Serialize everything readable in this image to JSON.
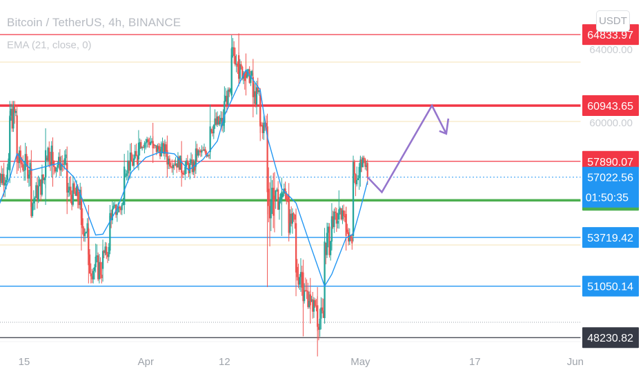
{
  "header": {
    "title": "Bitcoin / TetherUS, 4h, BINANCE",
    "indicator": "EMA (21, close, 0)",
    "currency": "USDT"
  },
  "colors": {
    "up": "#26a69a",
    "down": "#ef5350",
    "ema": "#2196f3",
    "red_level": "#f23645",
    "green_level": "#4caf50",
    "blue_level": "#2196f3",
    "black_level": "#363a45",
    "arrow": "#9575cd",
    "axis_text": "#c9ccd1"
  },
  "chart_data": {
    "type": "candlestick",
    "timeframe": "4h",
    "x_ticks": [
      "15",
      "Apr",
      "12",
      "May",
      "17",
      "Jun"
    ],
    "y_ticks": [
      "64000.00",
      "60000.00"
    ],
    "ylim": [
      46500,
      66200
    ],
    "price_levels": [
      {
        "value": "64833.97",
        "color": "red"
      },
      {
        "value": "60943.65",
        "color": "red"
      },
      {
        "value": "57890.07",
        "color": "red"
      },
      {
        "value": "55753.65",
        "color": "green"
      },
      {
        "value": "53719.42",
        "color": "blue"
      },
      {
        "value": "51050.14",
        "color": "blue"
      },
      {
        "value": "48230.82",
        "color": "black"
      }
    ],
    "current_price": {
      "value": "57022.56",
      "countdown": "01:50:35"
    },
    "ema_period": 21,
    "ema_path": [
      [
        "Mar 11",
        55000
      ],
      [
        "Mar 13",
        57000
      ],
      [
        "Mar 14",
        58300
      ],
      [
        "Mar 16",
        57400
      ],
      [
        "Mar 18",
        57600
      ],
      [
        "Mar 20",
        57800
      ],
      [
        "Mar 22",
        57000
      ],
      [
        "Mar 24",
        54900
      ],
      [
        "Mar 25",
        53850
      ],
      [
        "Mar 26",
        53900
      ],
      [
        "Mar 28",
        55300
      ],
      [
        "Mar 30",
        57300
      ],
      [
        "Apr 1",
        58100
      ],
      [
        "Apr 3",
        58400
      ],
      [
        "Apr 5",
        58300
      ],
      [
        "Apr 7",
        57400
      ],
      [
        "Apr 9",
        58000
      ],
      [
        "Apr 11",
        59000
      ],
      [
        "Apr 12",
        60400
      ],
      [
        "Apr 14",
        62100
      ],
      [
        "Apr 15",
        62900
      ],
      [
        "Apr 17",
        61800
      ],
      [
        "Apr 18",
        59200
      ],
      [
        "Apr 20",
        56400
      ],
      [
        "Apr 22",
        55600
      ],
      [
        "Apr 24",
        53300
      ],
      [
        "Apr 26",
        51050
      ],
      [
        "Apr 27",
        51700
      ],
      [
        "Apr 29",
        53700
      ],
      [
        "Apr 30",
        53900
      ],
      [
        "May 1",
        55300
      ],
      [
        "May 2",
        56800
      ]
    ],
    "candles": [
      [
        "Mar 11",
        56000,
        56700,
        58200,
        54400
      ],
      [
        "Mar 13",
        57400,
        60300,
        61200,
        56700
      ],
      [
        "Mar 14",
        60400,
        58000,
        61000,
        57200
      ],
      [
        "Mar 16",
        57500,
        55400,
        58500,
        54800
      ],
      [
        "Mar 18",
        57000,
        58500,
        59700,
        55500
      ],
      [
        "Mar 19",
        58400,
        57700,
        59200,
        56500
      ],
      [
        "Mar 21",
        57800,
        56300,
        58700,
        55000
      ],
      [
        "Mar 23",
        55800,
        54400,
        56500,
        53000
      ],
      [
        "Mar 24",
        54200,
        52200,
        55500,
        51200
      ],
      [
        "Mar 26",
        52000,
        52700,
        53600,
        51300
      ],
      [
        "Mar 27",
        53000,
        54900,
        55500,
        52800
      ],
      [
        "Mar 29",
        55500,
        57600,
        58300,
        55000
      ],
      [
        "Mar 31",
        58000,
        58900,
        59600,
        57400
      ],
      [
        "Apr 2",
        59000,
        58600,
        60000,
        57800
      ],
      [
        "Apr 4",
        58500,
        58000,
        59300,
        57000
      ],
      [
        "Apr 6",
        57800,
        57500,
        59000,
        56500
      ],
      [
        "Apr 8",
        57600,
        58300,
        59000,
        57200
      ],
      [
        "Apr 10",
        58400,
        59800,
        61000,
        58000
      ],
      [
        "Apr 12",
        60000,
        61200,
        62000,
        59500
      ],
      [
        "Apr 13",
        61500,
        63700,
        64800,
        61200
      ],
      [
        "Apr 14",
        63700,
        62800,
        64900,
        62000
      ],
      [
        "Apr 15",
        62800,
        62600,
        63800,
        61500
      ],
      [
        "Apr 16",
        62500,
        61400,
        63500,
        60300
      ],
      [
        "Apr 17",
        61500,
        59800,
        61900,
        59000
      ],
      [
        "Apr 18",
        59800,
        56200,
        60500,
        51000
      ],
      [
        "Apr 19",
        56000,
        55800,
        57300,
        54000
      ],
      [
        "Apr 20",
        55800,
        56200,
        57000,
        53800
      ],
      [
        "Apr 21",
        56000,
        54500,
        56700,
        53500
      ],
      [
        "Apr 22",
        54500,
        51800,
        55300,
        50500
      ],
      [
        "Apr 23",
        51800,
        50600,
        52500,
        48300
      ],
      [
        "Apr 24",
        50600,
        50000,
        51500,
        49000
      ],
      [
        "Apr 25",
        50000,
        49300,
        51000,
        47200
      ],
      [
        "Apr 26",
        49300,
        53500,
        54000,
        49000
      ],
      [
        "Apr 27",
        53500,
        54700,
        55600,
        53000
      ],
      [
        "Apr 28",
        54700,
        55000,
        56300,
        54200
      ],
      [
        "Apr 29",
        55000,
        53800,
        55400,
        53000
      ],
      [
        "Apr 30",
        53800,
        57200,
        58000,
        53500
      ],
      [
        "May 1",
        57300,
        57800,
        58200,
        56500
      ],
      [
        "May 2",
        57800,
        57022,
        58000,
        56600
      ]
    ],
    "projection_arrow": [
      [
        "May 2",
        57022
      ],
      [
        "May 4",
        56200
      ],
      [
        "May 11",
        60943
      ],
      [
        "May 13",
        59400
      ]
    ]
  }
}
